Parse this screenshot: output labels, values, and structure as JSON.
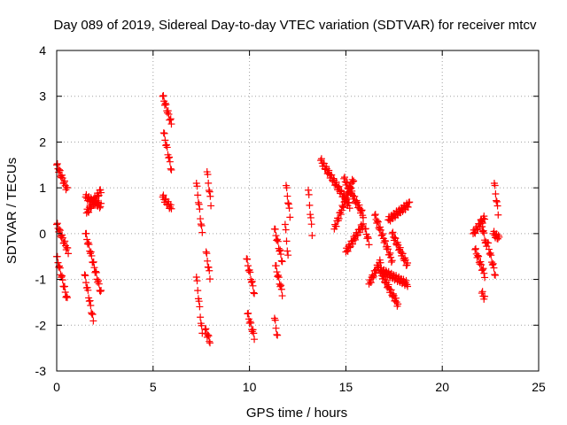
{
  "chart_data": {
    "type": "scatter",
    "title": "Day 089 of 2019, Sidereal Day-to-day VTEC variation (SDTVAR) for receiver mtcv",
    "xlabel": "GPS time / hours",
    "ylabel": "SDTVAR / TECUs",
    "xlim": [
      0,
      25
    ],
    "ylim": [
      -3,
      4
    ],
    "xticks": [
      "0",
      "5",
      "10",
      "15",
      "20",
      "25"
    ],
    "yticks": [
      "-3",
      "-2",
      "-1",
      "0",
      "1",
      "2",
      "3",
      "4"
    ],
    "grid": true,
    "marker": "+",
    "color": "#ff0000",
    "arcs": [
      {
        "t0": 0.0,
        "t1": 0.55,
        "y0": 1.5,
        "y1": 0.95
      },
      {
        "t0": 0.0,
        "t1": 0.6,
        "y0": 0.2,
        "y1": -0.4
      },
      {
        "t0": 0.0,
        "t1": 0.55,
        "y0": -0.5,
        "y1": -1.45
      },
      {
        "t0": 1.45,
        "t1": 1.9,
        "y0": -0.9,
        "y1": -1.9
      },
      {
        "t0": 1.5,
        "t1": 2.3,
        "y0": 0.0,
        "y1": -1.3
      },
      {
        "t0": 1.5,
        "t1": 2.3,
        "y0": 0.8,
        "y1": 0.6
      },
      {
        "t0": 1.55,
        "t1": 2.3,
        "y0": 0.45,
        "y1": 0.95
      },
      {
        "t0": 5.5,
        "t1": 5.95,
        "y0": 3.0,
        "y1": 2.4
      },
      {
        "t0": 5.55,
        "t1": 5.95,
        "y0": 2.2,
        "y1": 1.4
      },
      {
        "t0": 5.5,
        "t1": 5.95,
        "y0": 0.8,
        "y1": 0.55
      },
      {
        "t0": 7.25,
        "t1": 7.55,
        "y0": 1.1,
        "y1": 0.0
      },
      {
        "t0": 7.25,
        "t1": 7.55,
        "y0": -0.95,
        "y1": -2.2
      },
      {
        "t0": 7.8,
        "t1": 8.0,
        "y0": 1.35,
        "y1": 0.65
      },
      {
        "t0": 7.75,
        "t1": 7.95,
        "y0": -0.4,
        "y1": -0.95
      },
      {
        "t0": 7.7,
        "t1": 7.95,
        "y0": -2.1,
        "y1": -2.35
      },
      {
        "t0": 9.85,
        "t1": 10.25,
        "y0": -0.55,
        "y1": -1.3
      },
      {
        "t0": 9.9,
        "t1": 10.25,
        "y0": -1.75,
        "y1": -2.25
      },
      {
        "t0": 11.3,
        "t1": 11.7,
        "y0": 0.1,
        "y1": -0.6
      },
      {
        "t0": 11.35,
        "t1": 11.7,
        "y0": -0.7,
        "y1": -1.3
      },
      {
        "t0": 11.3,
        "t1": 11.45,
        "y0": -1.85,
        "y1": -2.25
      },
      {
        "t0": 11.9,
        "t1": 12.1,
        "y0": 1.05,
        "y1": 0.4
      },
      {
        "t0": 11.85,
        "t1": 12.0,
        "y0": 0.2,
        "y1": -0.5
      },
      {
        "t0": 13.05,
        "t1": 13.25,
        "y0": 0.95,
        "y1": 0.0
      },
      {
        "t0": 13.7,
        "t1": 15.2,
        "y0": 1.6,
        "y1": 0.6
      },
      {
        "t0": 14.4,
        "t1": 15.4,
        "y0": 0.1,
        "y1": 1.2
      },
      {
        "t0": 14.9,
        "t1": 15.9,
        "y0": 1.2,
        "y1": 0.4
      },
      {
        "t0": 15.0,
        "t1": 15.9,
        "y0": -0.4,
        "y1": 0.2
      },
      {
        "t0": 16.0,
        "t1": 16.2,
        "y0": 0.1,
        "y1": -0.2
      },
      {
        "t0": 16.2,
        "t1": 16.8,
        "y0": -1.1,
        "y1": -0.6
      },
      {
        "t0": 16.5,
        "t1": 17.4,
        "y0": 0.4,
        "y1": -0.6
      },
      {
        "t0": 16.8,
        "t1": 17.7,
        "y0": -0.85,
        "y1": -1.55
      },
      {
        "t0": 16.8,
        "t1": 18.2,
        "y0": -0.8,
        "y1": -1.1
      },
      {
        "t0": 17.2,
        "t1": 18.3,
        "y0": 0.3,
        "y1": 0.65
      },
      {
        "t0": 17.4,
        "t1": 18.2,
        "y0": 0.0,
        "y1": -0.7
      },
      {
        "t0": 21.6,
        "t1": 22.2,
        "y0": 0.0,
        "y1": 0.35
      },
      {
        "t0": 21.7,
        "t1": 22.2,
        "y0": -0.35,
        "y1": -0.9
      },
      {
        "t0": 22.05,
        "t1": 22.2,
        "y0": -1.3,
        "y1": -1.4
      },
      {
        "t0": 22.0,
        "t1": 22.3,
        "y0": 0.3,
        "y1": -0.3
      },
      {
        "t0": 22.35,
        "t1": 22.75,
        "y0": -0.2,
        "y1": -0.9
      },
      {
        "t0": 22.7,
        "t1": 22.9,
        "y0": 1.1,
        "y1": 0.45
      },
      {
        "t0": 22.65,
        "t1": 22.95,
        "y0": 0.0,
        "y1": -0.1
      }
    ]
  }
}
